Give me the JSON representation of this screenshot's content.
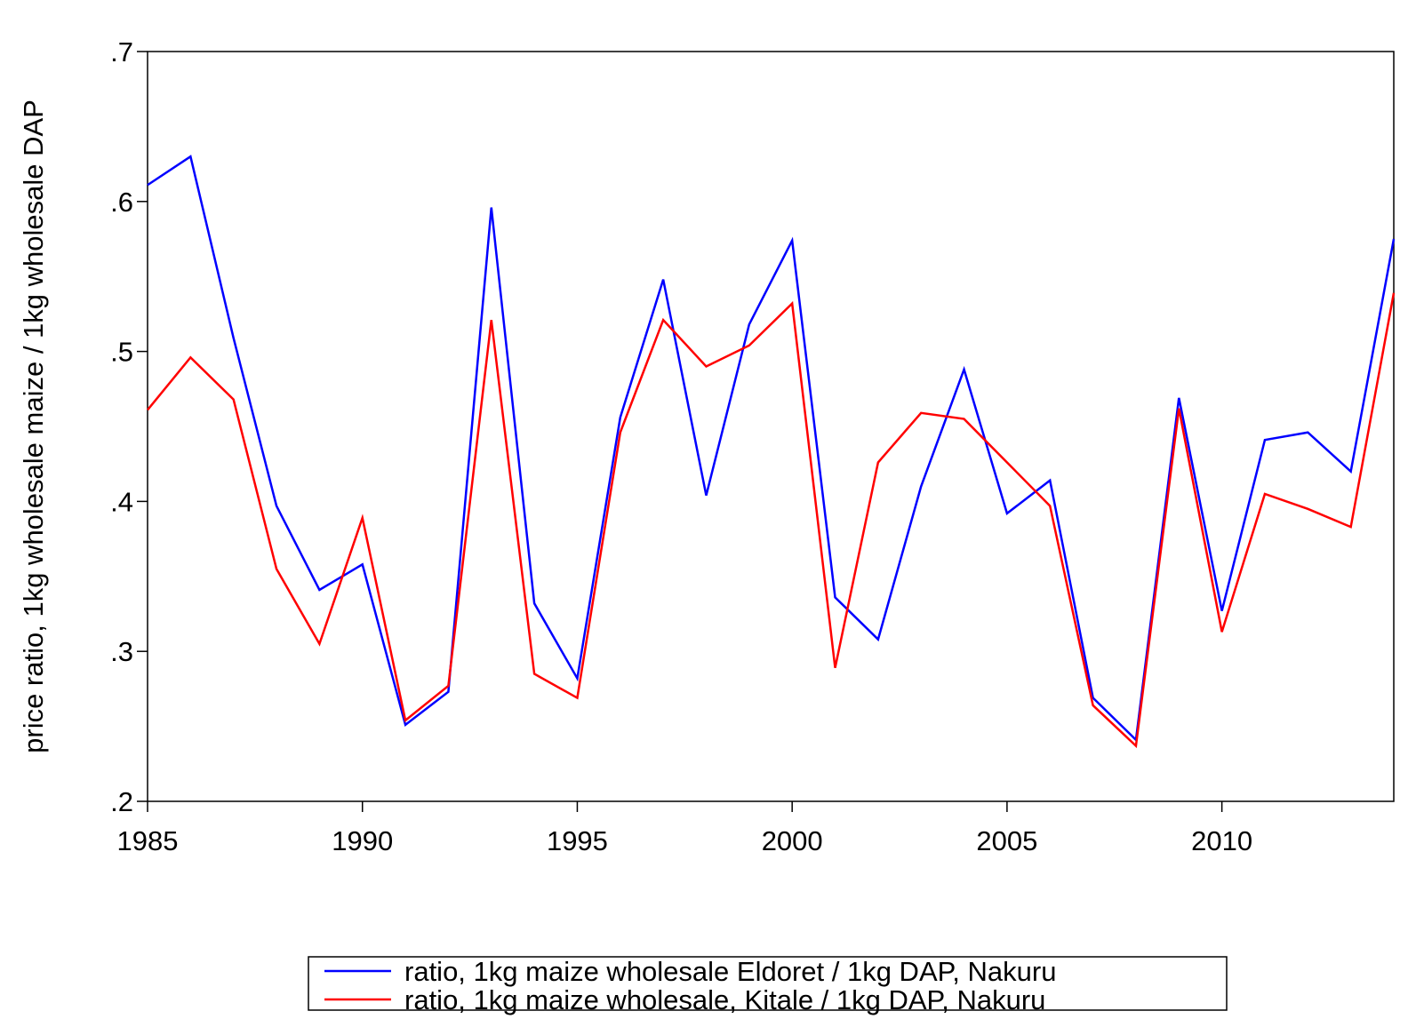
{
  "chart_data": {
    "type": "line",
    "y_label": "price ratio,  1kg wholesale maize / 1kg wholesale DAP",
    "x": [
      1985,
      1986,
      1987,
      1988,
      1989,
      1990,
      1991,
      1992,
      1993,
      1994,
      1995,
      1996,
      1997,
      1998,
      1999,
      2000,
      2001,
      2002,
      2003,
      2004,
      2005,
      2006,
      2007,
      2008,
      2009,
      2010,
      2011,
      2012,
      2013,
      2014
    ],
    "series": [
      {
        "name": "ratio, 1kg maize wholesale Eldoret / 1kg DAP, Nakuru",
        "color": "#0000ff",
        "values": [
          0.611,
          0.63,
          0.509,
          0.397,
          0.341,
          0.358,
          0.251,
          0.273,
          0.596,
          0.332,
          0.282,
          0.456,
          0.548,
          0.404,
          0.518,
          0.574,
          0.336,
          0.308,
          0.41,
          0.488,
          0.392,
          0.414,
          0.269,
          0.241,
          0.469,
          0.327,
          0.441,
          0.446,
          0.42,
          0.575
        ]
      },
      {
        "name": "ratio, 1kg maize wholesale, Kitale / 1kg DAP, Nakuru",
        "color": "#ff0000",
        "values": [
          0.461,
          0.496,
          0.468,
          0.355,
          0.305,
          0.389,
          0.254,
          0.277,
          0.521,
          0.285,
          0.269,
          0.446,
          0.521,
          0.49,
          0.504,
          0.532,
          0.289,
          0.426,
          0.459,
          0.455,
          0.426,
          0.397,
          0.264,
          0.237,
          0.462,
          0.313,
          0.405,
          0.395,
          0.383,
          0.539
        ]
      }
    ],
    "xlim": [
      1985,
      2014
    ],
    "xticks": [
      1985,
      1990,
      1995,
      2000,
      2005,
      2010
    ],
    "ylim": [
      0.2,
      0.7
    ],
    "yticks": [
      {
        "value": 0.2,
        "label": ".2"
      },
      {
        "value": 0.3,
        "label": ".3"
      },
      {
        "value": 0.4,
        "label": ".4"
      },
      {
        "value": 0.5,
        "label": ".5"
      },
      {
        "value": 0.6,
        "label": ".6"
      },
      {
        "value": 0.7,
        "label": ".7"
      }
    ]
  }
}
